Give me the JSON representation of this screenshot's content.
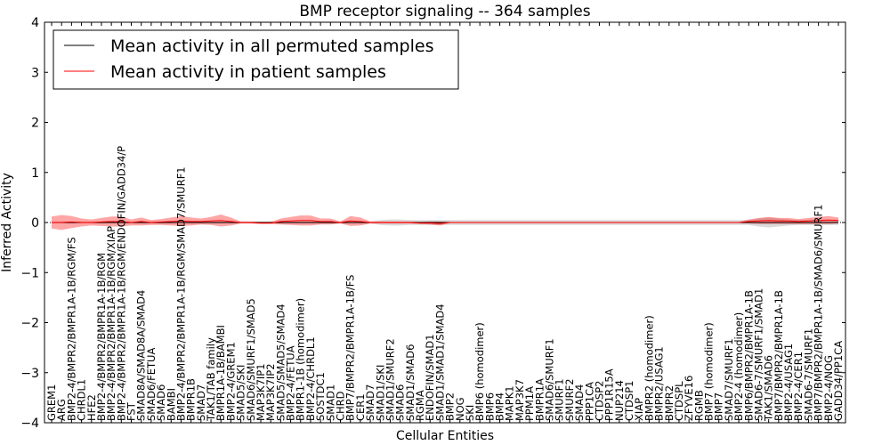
{
  "chart_data": {
    "type": "line",
    "title": "BMP receptor signaling -- 364 samples",
    "xlabel": "Cellular Entities",
    "ylabel": "Inferred Activity",
    "ylim": [
      -4,
      4
    ],
    "yticks": [
      "4",
      "3",
      "2",
      "1",
      "0",
      "−1",
      "−2",
      "−3",
      "−4"
    ],
    "legend_position": "top-left",
    "categories": [
      "GREM1",
      "ARG",
      "BMP2-4/BMPR2/BMPR1A-1B/RGM/FS",
      "CHRDL1",
      "HFE2",
      "BMP2-4/BMPR2/BMPR1A-1B/RGM",
      "BMP2-4/BMPR2/BMPR1A-1B/RGM/XIAP",
      "BMP2-4/BMPR2/BMPR1A-1B/RGM/ENDOFIN/GADD34/P",
      "FST",
      "SMAD8A/SMAD8A/SMAD4",
      "SMAD6/FETUA",
      "SMAD6",
      "BAMBI",
      "BMP2-4/BMPR2/BMPR1A-1B/RGM/SMAD7/SMURF1",
      "BMPR1B",
      "SMAD7",
      "TAK1/TAB family",
      "BMPR1A-1B/BAMBI",
      "BMP2-4/GREM1",
      "SMAD5/SKI",
      "SMAD6/SMURF1/SMAD5",
      "MAP3K7IP1",
      "MAP3K7IP2",
      "SMAD5/SMAD5/SMAD4",
      "BMP2-4/FETUA",
      "BMPR1-1B (homodimer)",
      "BMP2-4/CHRDL1",
      "SOSTDC1",
      "SMAD1",
      "CHRD",
      "BMP7/BMPR2/BMPR1A-1B/FS",
      "CER1",
      "SMAD7",
      "SMAD1/SKI",
      "SMAD1/SMURF2",
      "SMAD6",
      "SMAD1/SMAD6",
      "RGMA",
      "ENDOFIN/SMAD1",
      "SMAD1/SMAD1/SMAD4",
      "BMP2",
      "NOG",
      "SKI",
      "BMP6 (homodimer)",
      "BMP6",
      "BMP4",
      "MAPK1",
      "MAP3K7",
      "PPM1A",
      "BMPR1A",
      "SMAD6/SMURF1",
      "SMURF1",
      "SMURF2",
      "SMAD4",
      "PPP1CA",
      "CTDSP2",
      "PPP1R15A",
      "NUP214",
      "CTDSP1",
      "XIAP",
      "BMPR2 (homodimer)",
      "BMPR2/USAG1",
      "BMPR2",
      "CTDSPL",
      "ZFYVE16",
      "RGMB",
      "BMP7 (homodimer)",
      "BMP7",
      "SMAD7/SMURF1",
      "BMP2-4 (homodimer)",
      "BMP6/BMPR2/BMPR1A-1B",
      "SMAD6-7/SMURF1/SMAD1",
      "TAK1/SMAD6",
      "BMP7/BMPR2/BMPR1A-1B",
      "BMP2-4/USAG1",
      "BMP2-4/CER1",
      "SMAD6-7/SMURF1",
      "BMP7/BMPR2/BMPR1A-1B/SMAD6/SMURF1",
      "BMP2-4/NOG",
      "GADD34/PP1CA"
    ],
    "series": [
      {
        "name": "Mean activity in all permuted samples",
        "color": "#000000",
        "mean": [
          0,
          0,
          0,
          0,
          0,
          0,
          0,
          0,
          0,
          0,
          0,
          0,
          0,
          0,
          0,
          0,
          0,
          0,
          0,
          0,
          0,
          0,
          0,
          0,
          0,
          0,
          0,
          0,
          0,
          0,
          0,
          0,
          0,
          0,
          0,
          0,
          0,
          0,
          0,
          0,
          0,
          0,
          0,
          0,
          0,
          0,
          0,
          0,
          0,
          0,
          0,
          0,
          0,
          0,
          0,
          0,
          0,
          0,
          0,
          0,
          0,
          0,
          0,
          0,
          0,
          0,
          0,
          0,
          0,
          0,
          0,
          0,
          0,
          0,
          0,
          0,
          0,
          0,
          0,
          0
        ],
        "band": [
          0.02,
          0.02,
          0.02,
          0.02,
          0.02,
          0.02,
          0.02,
          0.02,
          0.02,
          0.02,
          0.02,
          0.02,
          0.02,
          0.02,
          0.02,
          0.02,
          0.02,
          0.02,
          0.02,
          0.02,
          0.02,
          0.02,
          0.02,
          0.02,
          0.02,
          0.02,
          0.02,
          0.02,
          0.02,
          0.02,
          0.02,
          0.02,
          0.02,
          0.05,
          0.06,
          0.06,
          0.05,
          0.05,
          0.05,
          0.05,
          0.05,
          0.05,
          0.05,
          0.05,
          0.05,
          0.05,
          0.05,
          0.05,
          0.05,
          0.05,
          0.05,
          0.05,
          0.05,
          0.05,
          0.05,
          0.05,
          0.05,
          0.05,
          0.05,
          0.05,
          0.05,
          0.05,
          0.05,
          0.05,
          0.05,
          0.05,
          0.05,
          0.05,
          0.05,
          0.05,
          0.05,
          0.08,
          0.1,
          0.08,
          0.06,
          0.05,
          0.05,
          0.05,
          0.05,
          0.05
        ]
      },
      {
        "name": "Mean activity in patient samples",
        "color": "#ff0000",
        "mean": [
          0.0,
          0.0,
          0.01,
          0.0,
          0.0,
          0.01,
          0.02,
          0.02,
          0.0,
          0.02,
          0.0,
          0.01,
          0.02,
          0.03,
          0.02,
          0.02,
          0.03,
          0.04,
          0.02,
          0.0,
          0.0,
          -0.01,
          -0.01,
          0.02,
          0.03,
          0.04,
          0.04,
          0.02,
          0.02,
          0.0,
          0.03,
          0.02,
          0.0,
          0.0,
          0.0,
          0.0,
          0.0,
          -0.01,
          -0.01,
          -0.02,
          0.0,
          0.0,
          0.0,
          0.0,
          0.0,
          0.0,
          0.0,
          0.0,
          0.0,
          0.0,
          0.0,
          0.0,
          0.0,
          0.0,
          0.0,
          0.0,
          0.0,
          0.0,
          0.0,
          0.0,
          0.0,
          0.0,
          0.0,
          0.0,
          0.0,
          0.0,
          0.0,
          0.0,
          0.0,
          0.0,
          0.02,
          0.03,
          0.04,
          0.03,
          0.03,
          0.02,
          0.03,
          0.04,
          0.05,
          0.04
        ],
        "band": [
          0.12,
          0.15,
          0.12,
          0.08,
          0.06,
          0.08,
          0.1,
          0.1,
          0.06,
          0.08,
          0.05,
          0.06,
          0.08,
          0.1,
          0.08,
          0.06,
          0.08,
          0.12,
          0.08,
          0.02,
          0.02,
          0.02,
          0.02,
          0.06,
          0.08,
          0.1,
          0.1,
          0.06,
          0.06,
          0.02,
          0.1,
          0.08,
          0.02,
          0.02,
          0.02,
          0.02,
          0.02,
          0.02,
          0.03,
          0.04,
          0.01,
          0.01,
          0.01,
          0.01,
          0.01,
          0.01,
          0.01,
          0.01,
          0.01,
          0.01,
          0.01,
          0.01,
          0.01,
          0.01,
          0.01,
          0.01,
          0.01,
          0.01,
          0.01,
          0.01,
          0.01,
          0.01,
          0.01,
          0.01,
          0.01,
          0.01,
          0.01,
          0.01,
          0.01,
          0.01,
          0.04,
          0.06,
          0.07,
          0.06,
          0.06,
          0.05,
          0.06,
          0.07,
          0.08,
          0.06
        ]
      }
    ]
  }
}
